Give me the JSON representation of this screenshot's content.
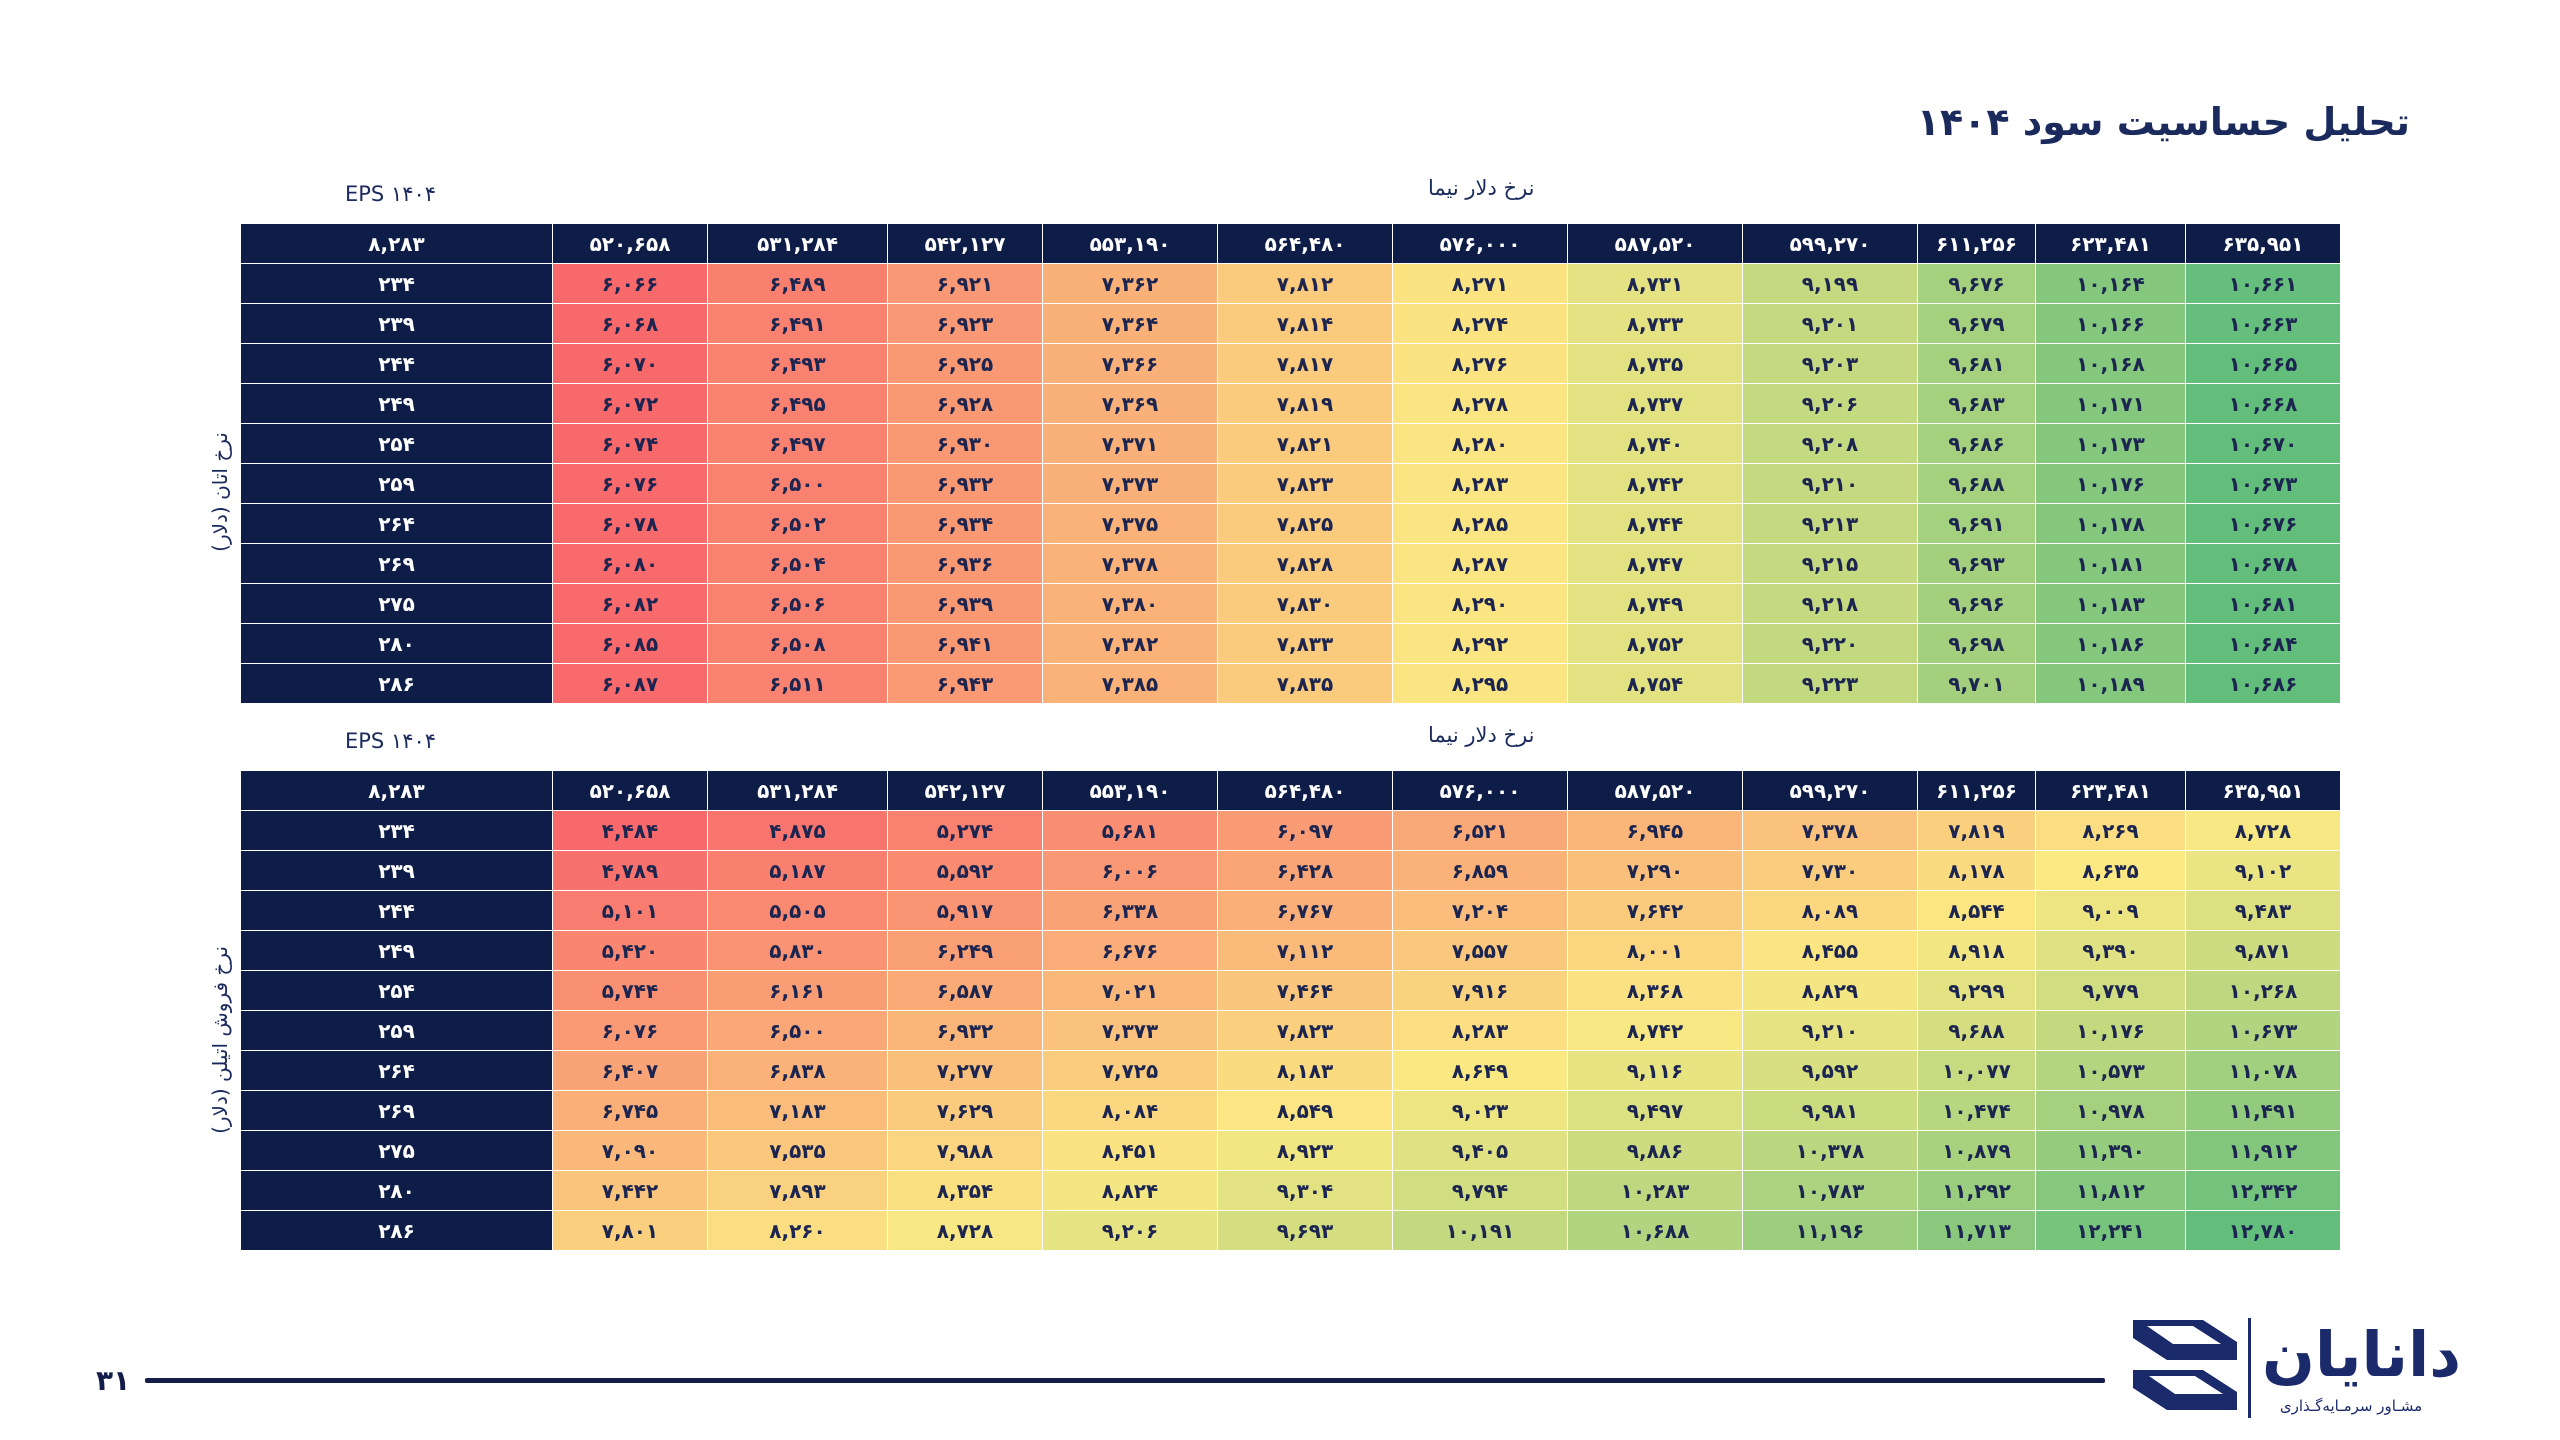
{
  "title": "تحلیل حساسیت سود ۱۴۰۴",
  "page_number": "۳۱",
  "logo": {
    "name": "دانایان",
    "tagline": "مشـاور سرمـایه‌گـذاری",
    "icon": "danayan-logo-icon"
  },
  "colors": {
    "header_bg": "#0d1d47",
    "low": "#f8696b",
    "mid": "#fbe983",
    "high": "#63be7b"
  },
  "tables": [
    {
      "eps_label": "EPS ۱۴۰۴",
      "col_axis_label": "نرخ دلار نیما",
      "row_axis_label": "نرخ اتان (دلار)",
      "corner": "۸,۲۸۳",
      "columns": [
        "۵۲۰,۶۵۸",
        "۵۳۱,۲۸۴",
        "۵۴۲,۱۲۷",
        "۵۵۳,۱۹۰",
        "۵۶۴,۴۸۰",
        "۵۷۶,۰۰۰",
        "۵۸۷,۵۲۰",
        "۵۹۹,۲۷۰",
        "۶۱۱,۲۵۶",
        "۶۲۳,۴۸۱",
        "۶۳۵,۹۵۱"
      ],
      "rows": [
        {
          "label": "۲۳۴",
          "cells": [
            "۶,۰۶۶",
            "۶,۴۸۹",
            "۶,۹۲۱",
            "۷,۳۶۲",
            "۷,۸۱۲",
            "۸,۲۷۱",
            "۸,۷۳۱",
            "۹,۱۹۹",
            "۹,۶۷۶",
            "۱۰,۱۶۴",
            "۱۰,۶۶۱"
          ]
        },
        {
          "label": "۲۳۹",
          "cells": [
            "۶,۰۶۸",
            "۶,۴۹۱",
            "۶,۹۲۳",
            "۷,۳۶۴",
            "۷,۸۱۴",
            "۸,۲۷۴",
            "۸,۷۳۳",
            "۹,۲۰۱",
            "۹,۶۷۹",
            "۱۰,۱۶۶",
            "۱۰,۶۶۳"
          ]
        },
        {
          "label": "۲۴۴",
          "cells": [
            "۶,۰۷۰",
            "۶,۴۹۳",
            "۶,۹۲۵",
            "۷,۳۶۶",
            "۷,۸۱۷",
            "۸,۲۷۶",
            "۸,۷۳۵",
            "۹,۲۰۳",
            "۹,۶۸۱",
            "۱۰,۱۶۸",
            "۱۰,۶۶۵"
          ]
        },
        {
          "label": "۲۴۹",
          "cells": [
            "۶,۰۷۲",
            "۶,۴۹۵",
            "۶,۹۲۸",
            "۷,۳۶۹",
            "۷,۸۱۹",
            "۸,۲۷۸",
            "۸,۷۳۷",
            "۹,۲۰۶",
            "۹,۶۸۳",
            "۱۰,۱۷۱",
            "۱۰,۶۶۸"
          ]
        },
        {
          "label": "۲۵۴",
          "cells": [
            "۶,۰۷۴",
            "۶,۴۹۷",
            "۶,۹۳۰",
            "۷,۳۷۱",
            "۷,۸۲۱",
            "۸,۲۸۰",
            "۸,۷۴۰",
            "۹,۲۰۸",
            "۹,۶۸۶",
            "۱۰,۱۷۳",
            "۱۰,۶۷۰"
          ]
        },
        {
          "label": "۲۵۹",
          "cells": [
            "۶,۰۷۶",
            "۶,۵۰۰",
            "۶,۹۳۲",
            "۷,۳۷۳",
            "۷,۸۲۳",
            "۸,۲۸۳",
            "۸,۷۴۲",
            "۹,۲۱۰",
            "۹,۶۸۸",
            "۱۰,۱۷۶",
            "۱۰,۶۷۳"
          ]
        },
        {
          "label": "۲۶۴",
          "cells": [
            "۶,۰۷۸",
            "۶,۵۰۲",
            "۶,۹۳۴",
            "۷,۳۷۵",
            "۷,۸۲۵",
            "۸,۲۸۵",
            "۸,۷۴۴",
            "۹,۲۱۳",
            "۹,۶۹۱",
            "۱۰,۱۷۸",
            "۱۰,۶۷۶"
          ]
        },
        {
          "label": "۲۶۹",
          "cells": [
            "۶,۰۸۰",
            "۶,۵۰۴",
            "۶,۹۳۶",
            "۷,۳۷۸",
            "۷,۸۲۸",
            "۸,۲۸۷",
            "۸,۷۴۷",
            "۹,۲۱۵",
            "۹,۶۹۳",
            "۱۰,۱۸۱",
            "۱۰,۶۷۸"
          ]
        },
        {
          "label": "۲۷۵",
          "cells": [
            "۶,۰۸۲",
            "۶,۵۰۶",
            "۶,۹۳۹",
            "۷,۳۸۰",
            "۷,۸۳۰",
            "۸,۲۹۰",
            "۸,۷۴۹",
            "۹,۲۱۸",
            "۹,۶۹۶",
            "۱۰,۱۸۳",
            "۱۰,۶۸۱"
          ]
        },
        {
          "label": "۲۸۰",
          "cells": [
            "۶,۰۸۵",
            "۶,۵۰۸",
            "۶,۹۴۱",
            "۷,۳۸۲",
            "۷,۸۳۳",
            "۸,۲۹۲",
            "۸,۷۵۲",
            "۹,۲۲۰",
            "۹,۶۹۸",
            "۱۰,۱۸۶",
            "۱۰,۶۸۴"
          ]
        },
        {
          "label": "۲۸۶",
          "cells": [
            "۶,۰۸۷",
            "۶,۵۱۱",
            "۶,۹۴۳",
            "۷,۳۸۵",
            "۷,۸۳۵",
            "۸,۲۹۵",
            "۸,۷۵۴",
            "۹,۲۲۳",
            "۹,۷۰۱",
            "۱۰,۱۸۹",
            "۱۰,۶۸۶"
          ]
        }
      ]
    },
    {
      "eps_label": "EPS ۱۴۰۴",
      "col_axis_label": "نرخ دلار نیما",
      "row_axis_label": "نرخ فروش اتیلن (دلار)",
      "corner": "۸,۲۸۳",
      "columns": [
        "۵۲۰,۶۵۸",
        "۵۳۱,۲۸۴",
        "۵۴۲,۱۲۷",
        "۵۵۳,۱۹۰",
        "۵۶۴,۴۸۰",
        "۵۷۶,۰۰۰",
        "۵۸۷,۵۲۰",
        "۵۹۹,۲۷۰",
        "۶۱۱,۲۵۶",
        "۶۲۳,۴۸۱",
        "۶۳۵,۹۵۱"
      ],
      "rows": [
        {
          "label": "۲۳۴",
          "cells": [
            "۴,۴۸۴",
            "۴,۸۷۵",
            "۵,۲۷۴",
            "۵,۶۸۱",
            "۶,۰۹۷",
            "۶,۵۲۱",
            "۶,۹۴۵",
            "۷,۳۷۸",
            "۷,۸۱۹",
            "۸,۲۶۹",
            "۸,۷۲۸"
          ]
        },
        {
          "label": "۲۳۹",
          "cells": [
            "۴,۷۸۹",
            "۵,۱۸۷",
            "۵,۵۹۲",
            "۶,۰۰۶",
            "۶,۴۲۸",
            "۶,۸۵۹",
            "۷,۲۹۰",
            "۷,۷۳۰",
            "۸,۱۷۸",
            "۸,۶۳۵",
            "۹,۱۰۲"
          ]
        },
        {
          "label": "۲۴۴",
          "cells": [
            "۵,۱۰۱",
            "۵,۵۰۵",
            "۵,۹۱۷",
            "۶,۳۳۸",
            "۶,۷۶۷",
            "۷,۲۰۴",
            "۷,۶۴۲",
            "۸,۰۸۹",
            "۸,۵۴۴",
            "۹,۰۰۹",
            "۹,۴۸۳"
          ]
        },
        {
          "label": "۲۴۹",
          "cells": [
            "۵,۴۲۰",
            "۵,۸۳۰",
            "۶,۲۴۹",
            "۶,۶۷۶",
            "۷,۱۱۲",
            "۷,۵۵۷",
            "۸,۰۰۱",
            "۸,۴۵۵",
            "۸,۹۱۸",
            "۹,۳۹۰",
            "۹,۸۷۱"
          ]
        },
        {
          "label": "۲۵۴",
          "cells": [
            "۵,۷۴۴",
            "۶,۱۶۱",
            "۶,۵۸۷",
            "۷,۰۲۱",
            "۷,۴۶۴",
            "۷,۹۱۶",
            "۸,۳۶۸",
            "۸,۸۲۹",
            "۹,۲۹۹",
            "۹,۷۷۹",
            "۱۰,۲۶۸"
          ]
        },
        {
          "label": "۲۵۹",
          "cells": [
            "۶,۰۷۶",
            "۶,۵۰۰",
            "۶,۹۳۲",
            "۷,۳۷۳",
            "۷,۸۲۳",
            "۸,۲۸۳",
            "۸,۷۴۲",
            "۹,۲۱۰",
            "۹,۶۸۸",
            "۱۰,۱۷۶",
            "۱۰,۶۷۳"
          ]
        },
        {
          "label": "۲۶۴",
          "cells": [
            "۶,۴۰۷",
            "۶,۸۳۸",
            "۷,۲۷۷",
            "۷,۷۲۵",
            "۸,۱۸۳",
            "۸,۶۴۹",
            "۹,۱۱۶",
            "۹,۵۹۲",
            "۱۰,۰۷۷",
            "۱۰,۵۷۳",
            "۱۱,۰۷۸"
          ]
        },
        {
          "label": "۲۶۹",
          "cells": [
            "۶,۷۴۵",
            "۷,۱۸۳",
            "۷,۶۲۹",
            "۸,۰۸۴",
            "۸,۵۴۹",
            "۹,۰۲۳",
            "۹,۴۹۷",
            "۹,۹۸۱",
            "۱۰,۴۷۴",
            "۱۰,۹۷۸",
            "۱۱,۴۹۱"
          ]
        },
        {
          "label": "۲۷۵",
          "cells": [
            "۷,۰۹۰",
            "۷,۵۳۵",
            "۷,۹۸۸",
            "۸,۴۵۱",
            "۸,۹۲۳",
            "۹,۴۰۵",
            "۹,۸۸۶",
            "۱۰,۳۷۸",
            "۱۰,۸۷۹",
            "۱۱,۳۹۰",
            "۱۱,۹۱۲"
          ]
        },
        {
          "label": "۲۸۰",
          "cells": [
            "۷,۴۴۲",
            "۷,۸۹۳",
            "۸,۳۵۴",
            "۸,۸۲۴",
            "۹,۳۰۴",
            "۹,۷۹۴",
            "۱۰,۲۸۳",
            "۱۰,۷۸۳",
            "۱۱,۲۹۲",
            "۱۱,۸۱۲",
            "۱۲,۳۴۲"
          ]
        },
        {
          "label": "۲۸۶",
          "cells": [
            "۷,۸۰۱",
            "۸,۲۶۰",
            "۸,۷۲۸",
            "۹,۲۰۶",
            "۹,۶۹۳",
            "۱۰,۱۹۱",
            "۱۰,۶۸۸",
            "۱۱,۱۹۶",
            "۱۱,۷۱۳",
            "۱۲,۲۴۱",
            "۱۲,۷۸۰"
          ]
        }
      ]
    }
  ]
}
